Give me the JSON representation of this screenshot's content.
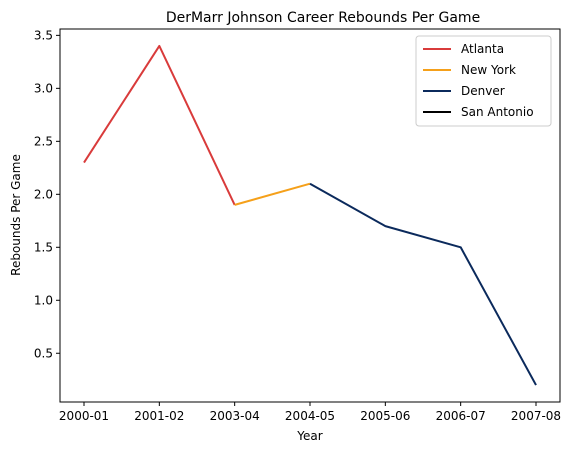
{
  "chart_data": {
    "type": "line",
    "title": "DerMarr Johnson Career Rebounds Per Game",
    "xlabel": "Year",
    "ylabel": "Rebounds Per Game",
    "categories": [
      "2000-01",
      "2001-02",
      "2003-04",
      "2004-05",
      "2005-06",
      "2006-07",
      "2007-08"
    ],
    "yticks": [
      "0.5",
      "1.0",
      "1.5",
      "2.0",
      "2.5",
      "3.0",
      "3.5"
    ],
    "ylim": [
      0.04,
      3.56
    ],
    "grid": false,
    "legend_position": "top-right",
    "series": [
      {
        "name": "Atlanta",
        "color": "#d93b3b",
        "points": [
          [
            "2000-01",
            2.3
          ],
          [
            "2001-02",
            3.4
          ],
          [
            "2003-04",
            1.9
          ]
        ]
      },
      {
        "name": "New York",
        "color": "#f5a01a",
        "points": [
          [
            "2003-04",
            1.9
          ],
          [
            "2004-05",
            2.1
          ]
        ]
      },
      {
        "name": "Denver",
        "color": "#0b2a5c",
        "points": [
          [
            "2004-05",
            2.1
          ],
          [
            "2005-06",
            1.7
          ],
          [
            "2006-07",
            1.5
          ],
          [
            "2007-08",
            0.2
          ]
        ]
      },
      {
        "name": "San Antonio",
        "color": "#000000",
        "points": []
      }
    ]
  }
}
